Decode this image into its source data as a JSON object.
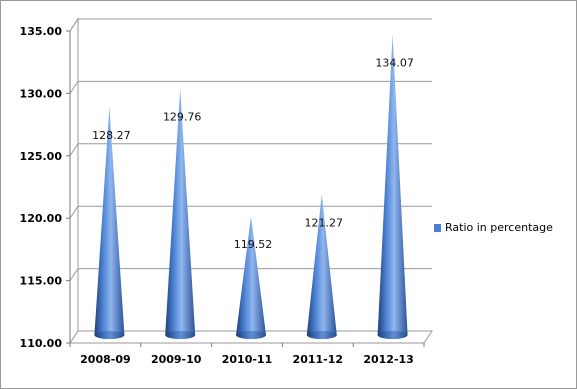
{
  "chart_data": {
    "type": "bar",
    "style": "3d-cone",
    "categories": [
      "2008-09",
      "2009-10",
      "2010-11",
      "2011-12",
      "2012-13"
    ],
    "series": [
      {
        "name": "Ratio in percentage",
        "values": [
          128.27,
          129.76,
          119.52,
          121.27,
          134.07
        ]
      }
    ],
    "data_labels": [
      "128.27",
      "129.76",
      "119.52",
      "121.27",
      "134.07"
    ],
    "y_ticks": [
      "110.00",
      "115.00",
      "120.00",
      "125.00",
      "130.00",
      "135.00"
    ],
    "ylim": [
      110,
      135
    ],
    "title": "",
    "xlabel": "",
    "ylabel": "",
    "grid": true,
    "legend_position": "right",
    "colors": {
      "series": "#4a7fd0",
      "grid": "#9a9a9a"
    }
  }
}
